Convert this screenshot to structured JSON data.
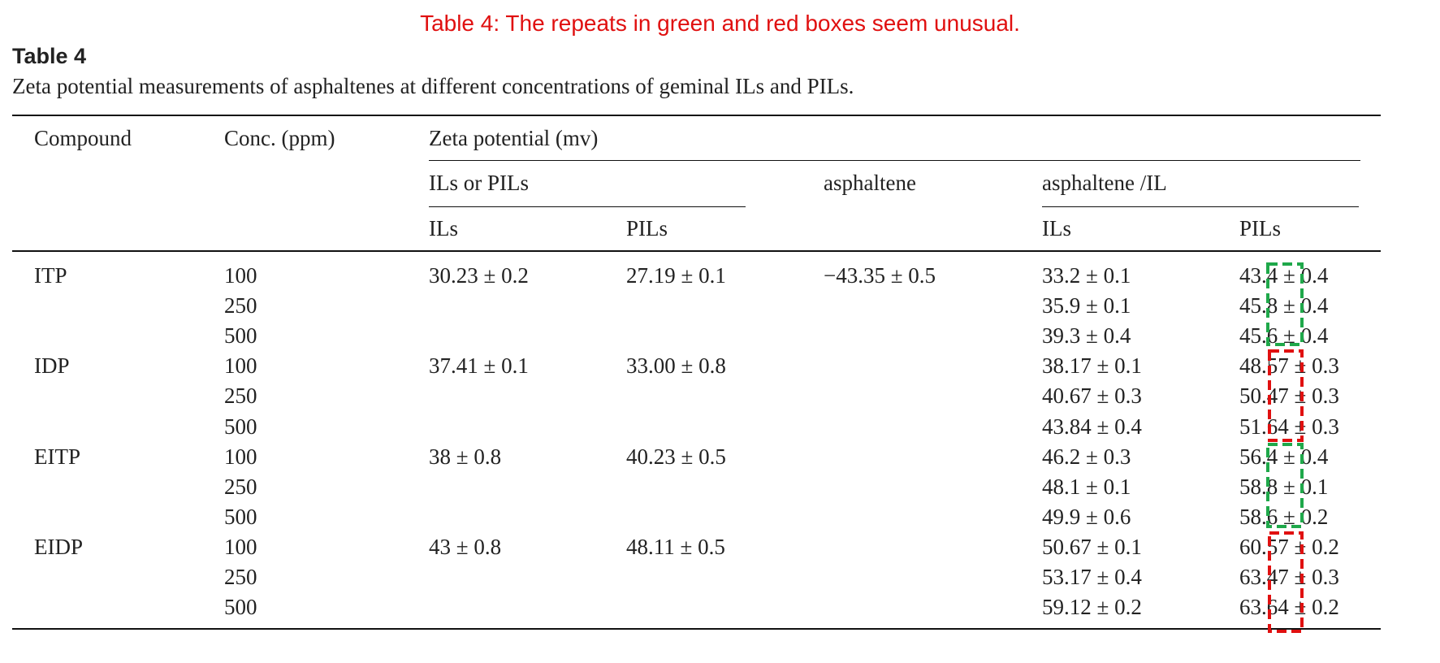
{
  "annotation": "Table 4: The repeats in green and red boxes seem unusual.",
  "header": {
    "title": "Table 4",
    "caption": "Zeta potential measurements of asphaltenes at different concentrations of geminal ILs and PILs."
  },
  "table": {
    "columns": {
      "compound": "Compound",
      "conc": "Conc. (ppm)",
      "zeta": "Zeta potential (mv)",
      "ils_or_pils": "ILs or PILs",
      "asphaltene": "asphaltene",
      "asphaltene_il": "asphaltene /IL",
      "ils": "ILs",
      "pils": "PILs",
      "ils2": "ILs",
      "pils2": "PILs"
    },
    "asphaltene_value": "−43.35 ± 0.5",
    "groups": [
      {
        "compound": "ITP",
        "ils": "30.23 ± 0.2",
        "pils": "27.19 ± 0.1",
        "rows": [
          {
            "conc": "100",
            "il": "33.2 ± 0.1",
            "pil": "43.4 ± 0.4"
          },
          {
            "conc": "250",
            "il": "35.9 ± 0.1",
            "pil": "45.8 ± 0.4"
          },
          {
            "conc": "500",
            "il": "39.3 ± 0.4",
            "pil": "45.6 ± 0.4"
          }
        ]
      },
      {
        "compound": "IDP",
        "ils": "37.41 ± 0.1",
        "pils": "33.00 ± 0.8",
        "rows": [
          {
            "conc": "100",
            "il": "38.17 ± 0.1",
            "pil": "48.57 ± 0.3"
          },
          {
            "conc": "250",
            "il": "40.67 ± 0.3",
            "pil": "50.47 ± 0.3"
          },
          {
            "conc": "500",
            "il": "43.84 ± 0.4",
            "pil": "51.64 ± 0.3"
          }
        ]
      },
      {
        "compound": "EITP",
        "ils": "38 ± 0.8",
        "pils": "40.23 ± 0.5",
        "rows": [
          {
            "conc": "100",
            "il": "46.2 ± 0.3",
            "pil": "56.4 ± 0.4"
          },
          {
            "conc": "250",
            "il": "48.1 ± 0.1",
            "pil": "58.8 ± 0.1"
          },
          {
            "conc": "500",
            "il": "49.9 ± 0.6",
            "pil": "58.6 ± 0.2"
          }
        ]
      },
      {
        "compound": "EIDP",
        "ils": "43 ± 0.8",
        "pils": "48.11 ± 0.5",
        "rows": [
          {
            "conc": "100",
            "il": "50.67 ± 0.1",
            "pil": "60.57 ± 0.2"
          },
          {
            "conc": "250",
            "il": "53.17 ± 0.4",
            "pil": "63.47 ± 0.3"
          },
          {
            "conc": "500",
            "il": "59.12 ± 0.2",
            "pil": "63.64 ± 0.2"
          }
        ]
      }
    ]
  }
}
